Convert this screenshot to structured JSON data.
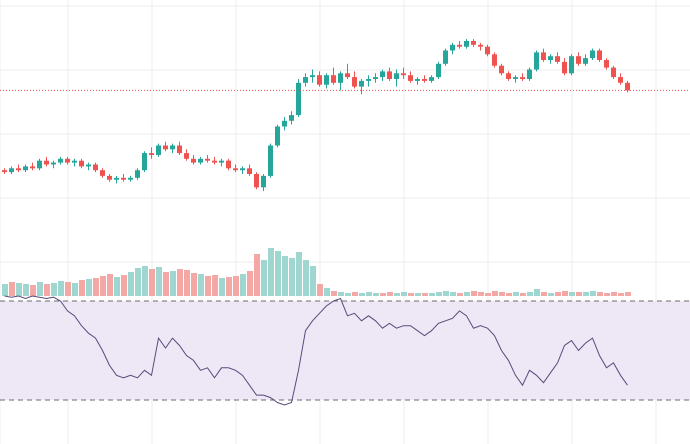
{
  "colors": {
    "background": "#ffffff",
    "grid": "#ececec",
    "up": "#26a69a",
    "down": "#ef5350",
    "up_volume": "#9fd6cf",
    "down_volume": "#f4a8a6",
    "price_line": "#ef5350",
    "rsi_band_fill": "#ede7f6",
    "rsi_band_border": "#6b6b6b",
    "rsi_line": "#5b4a7a"
  },
  "chart_data": {
    "type": "candlestick",
    "title": "",
    "xlabel": "",
    "ylabel": "",
    "grid": true,
    "current_price": 48.4,
    "price_ylim": [
      40,
      52
    ],
    "candles": [
      [
        44.2,
        44.3,
        44.0,
        44.1
      ],
      [
        44.1,
        44.4,
        44.0,
        44.3
      ],
      [
        44.3,
        44.5,
        44.1,
        44.2
      ],
      [
        44.2,
        44.5,
        44.1,
        44.4
      ],
      [
        44.4,
        44.6,
        44.2,
        44.3
      ],
      [
        44.3,
        44.8,
        44.2,
        44.7
      ],
      [
        44.7,
        44.9,
        44.4,
        44.5
      ],
      [
        44.5,
        44.7,
        44.3,
        44.6
      ],
      [
        44.6,
        44.9,
        44.5,
        44.8
      ],
      [
        44.8,
        44.9,
        44.5,
        44.6
      ],
      [
        44.6,
        44.8,
        44.4,
        44.7
      ],
      [
        44.7,
        44.8,
        44.3,
        44.4
      ],
      [
        44.4,
        44.6,
        44.2,
        44.5
      ],
      [
        44.5,
        44.6,
        44.1,
        44.2
      ],
      [
        44.2,
        44.3,
        43.8,
        43.9
      ],
      [
        43.9,
        44.0,
        43.6,
        43.7
      ],
      [
        43.7,
        43.9,
        43.5,
        43.8
      ],
      [
        43.8,
        44.0,
        43.6,
        43.7
      ],
      [
        43.7,
        43.9,
        43.6,
        43.8
      ],
      [
        43.8,
        44.3,
        43.7,
        44.2
      ],
      [
        44.2,
        45.2,
        44.1,
        45.1
      ],
      [
        45.1,
        45.4,
        44.8,
        45.0
      ],
      [
        45.0,
        45.6,
        44.9,
        45.5
      ],
      [
        45.5,
        45.7,
        45.2,
        45.3
      ],
      [
        45.3,
        45.6,
        45.1,
        45.5
      ],
      [
        45.5,
        45.7,
        45.0,
        45.1
      ],
      [
        45.1,
        45.3,
        44.7,
        44.8
      ],
      [
        44.8,
        45.0,
        44.5,
        44.6
      ],
      [
        44.6,
        44.9,
        44.5,
        44.8
      ],
      [
        44.8,
        45.0,
        44.6,
        44.7
      ],
      [
        44.7,
        44.9,
        44.5,
        44.6
      ],
      [
        44.6,
        44.8,
        44.4,
        44.7
      ],
      [
        44.7,
        44.8,
        44.2,
        44.3
      ],
      [
        44.3,
        44.5,
        44.1,
        44.2
      ],
      [
        44.2,
        44.4,
        44.0,
        44.3
      ],
      [
        44.3,
        44.5,
        43.9,
        44.0
      ],
      [
        44.0,
        44.1,
        43.2,
        43.3
      ],
      [
        43.3,
        44.0,
        43.1,
        43.9
      ],
      [
        43.9,
        45.6,
        43.8,
        45.5
      ],
      [
        45.5,
        46.6,
        45.4,
        46.5
      ],
      [
        46.5,
        47.0,
        46.3,
        46.8
      ],
      [
        46.8,
        47.3,
        46.6,
        47.1
      ],
      [
        47.1,
        49.0,
        47.0,
        48.8
      ],
      [
        48.8,
        49.3,
        48.6,
        49.1
      ],
      [
        49.1,
        49.5,
        48.8,
        49.2
      ],
      [
        49.2,
        49.4,
        48.6,
        48.7
      ],
      [
        48.7,
        49.3,
        48.5,
        49.2
      ],
      [
        49.2,
        49.6,
        48.7,
        48.8
      ],
      [
        48.8,
        49.4,
        48.4,
        49.3
      ],
      [
        49.3,
        49.8,
        49.0,
        49.1
      ],
      [
        49.1,
        49.4,
        48.5,
        48.6
      ],
      [
        48.6,
        49.0,
        48.2,
        48.9
      ],
      [
        48.9,
        49.2,
        48.6,
        49.0
      ],
      [
        49.0,
        49.3,
        48.8,
        49.1
      ],
      [
        49.1,
        49.5,
        48.9,
        49.4
      ],
      [
        49.4,
        49.6,
        48.9,
        49.0
      ],
      [
        49.0,
        49.5,
        48.6,
        49.3
      ],
      [
        49.3,
        49.6,
        49.0,
        49.2
      ],
      [
        49.2,
        49.4,
        48.8,
        48.9
      ],
      [
        48.9,
        49.1,
        48.7,
        49.0
      ],
      [
        49.0,
        49.2,
        48.8,
        48.9
      ],
      [
        48.9,
        49.2,
        48.8,
        49.1
      ],
      [
        49.1,
        49.9,
        49.0,
        49.8
      ],
      [
        49.8,
        50.6,
        49.7,
        50.5
      ],
      [
        50.5,
        50.9,
        50.3,
        50.8
      ],
      [
        50.8,
        51.0,
        50.6,
        50.7
      ],
      [
        50.7,
        51.1,
        50.6,
        51.0
      ],
      [
        51.0,
        51.1,
        50.7,
        50.8
      ],
      [
        50.8,
        50.9,
        50.5,
        50.7
      ],
      [
        50.7,
        50.8,
        50.2,
        50.3
      ],
      [
        50.3,
        50.4,
        49.6,
        49.7
      ],
      [
        49.7,
        49.8,
        49.2,
        49.3
      ],
      [
        49.3,
        49.4,
        48.9,
        49.0
      ],
      [
        49.0,
        49.2,
        48.8,
        49.1
      ],
      [
        49.1,
        49.3,
        48.9,
        49.0
      ],
      [
        49.0,
        49.6,
        48.9,
        49.5
      ],
      [
        49.5,
        50.5,
        49.4,
        50.4
      ],
      [
        50.4,
        50.6,
        49.9,
        50.0
      ],
      [
        50.0,
        50.3,
        49.8,
        50.2
      ],
      [
        50.2,
        50.4,
        49.8,
        49.9
      ],
      [
        49.9,
        50.1,
        49.2,
        49.3
      ],
      [
        49.3,
        50.3,
        49.2,
        50.2
      ],
      [
        50.2,
        50.4,
        49.7,
        49.8
      ],
      [
        49.8,
        50.3,
        49.7,
        50.1
      ],
      [
        50.1,
        50.6,
        50.0,
        50.5
      ],
      [
        50.5,
        50.6,
        49.9,
        50.0
      ],
      [
        50.0,
        50.1,
        49.5,
        49.6
      ],
      [
        49.6,
        49.7,
        49.0,
        49.1
      ],
      [
        49.1,
        49.3,
        48.7,
        48.8
      ],
      [
        48.8,
        48.9,
        48.3,
        48.4
      ]
    ],
    "volume": [
      [
        12,
        1
      ],
      [
        14,
        0
      ],
      [
        13,
        1
      ],
      [
        12,
        1
      ],
      [
        11,
        0
      ],
      [
        14,
        1
      ],
      [
        12,
        0
      ],
      [
        13,
        1
      ],
      [
        15,
        1
      ],
      [
        14,
        0
      ],
      [
        13,
        1
      ],
      [
        16,
        0
      ],
      [
        17,
        1
      ],
      [
        18,
        0
      ],
      [
        20,
        0
      ],
      [
        22,
        0
      ],
      [
        19,
        1
      ],
      [
        21,
        0
      ],
      [
        24,
        1
      ],
      [
        28,
        1
      ],
      [
        30,
        1
      ],
      [
        27,
        0
      ],
      [
        29,
        1
      ],
      [
        24,
        0
      ],
      [
        25,
        1
      ],
      [
        27,
        0
      ],
      [
        26,
        0
      ],
      [
        23,
        0
      ],
      [
        22,
        1
      ],
      [
        20,
        0
      ],
      [
        21,
        0
      ],
      [
        18,
        1
      ],
      [
        19,
        0
      ],
      [
        20,
        0
      ],
      [
        22,
        1
      ],
      [
        25,
        0
      ],
      [
        42,
        0
      ],
      [
        36,
        1
      ],
      [
        48,
        1
      ],
      [
        45,
        1
      ],
      [
        40,
        1
      ],
      [
        38,
        1
      ],
      [
        44,
        1
      ],
      [
        36,
        1
      ],
      [
        30,
        1
      ],
      [
        12,
        0
      ],
      [
        8,
        1
      ],
      [
        5,
        0
      ],
      [
        4,
        1
      ],
      [
        3,
        1
      ],
      [
        4,
        0
      ],
      [
        3,
        1
      ],
      [
        4,
        1
      ],
      [
        3,
        1
      ],
      [
        3,
        0
      ],
      [
        4,
        0
      ],
      [
        3,
        1
      ],
      [
        4,
        1
      ],
      [
        3,
        0
      ],
      [
        3,
        1
      ],
      [
        3,
        0
      ],
      [
        3,
        1
      ],
      [
        4,
        1
      ],
      [
        5,
        1
      ],
      [
        4,
        1
      ],
      [
        3,
        0
      ],
      [
        4,
        1
      ],
      [
        5,
        0
      ],
      [
        4,
        0
      ],
      [
        3,
        0
      ],
      [
        5,
        0
      ],
      [
        4,
        0
      ],
      [
        3,
        0
      ],
      [
        4,
        1
      ],
      [
        3,
        0
      ],
      [
        4,
        1
      ],
      [
        7,
        1
      ],
      [
        4,
        0
      ],
      [
        3,
        1
      ],
      [
        4,
        0
      ],
      [
        5,
        0
      ],
      [
        4,
        1
      ],
      [
        4,
        0
      ],
      [
        4,
        1
      ],
      [
        5,
        1
      ],
      [
        4,
        0
      ],
      [
        3,
        0
      ],
      [
        4,
        0
      ],
      [
        3,
        0
      ],
      [
        4,
        0
      ]
    ],
    "volume_max": 60,
    "rsi": {
      "upper": 70,
      "lower": 30,
      "ylim": [
        28,
        72
      ],
      "values": [
        72,
        71.5,
        72,
        71,
        72,
        71.5,
        71,
        71.5,
        70,
        66,
        64,
        60,
        57,
        55,
        50,
        44,
        40,
        39,
        40,
        39,
        42,
        40,
        55,
        51,
        55,
        52,
        48,
        46,
        42,
        43,
        39,
        43,
        43,
        42,
        40,
        36,
        32,
        32,
        31,
        29,
        28,
        29,
        42,
        58,
        62,
        65,
        68,
        70,
        71,
        64,
        65,
        62,
        64,
        62,
        59,
        61,
        59,
        60,
        60,
        58,
        56,
        58,
        61,
        62,
        63,
        66,
        64,
        59,
        60,
        59,
        56,
        50,
        46,
        40,
        36,
        42,
        40,
        37,
        41,
        45,
        52,
        54,
        50,
        53,
        55,
        48,
        43,
        45,
        40,
        36
      ],
      "line_width": 1
    }
  }
}
